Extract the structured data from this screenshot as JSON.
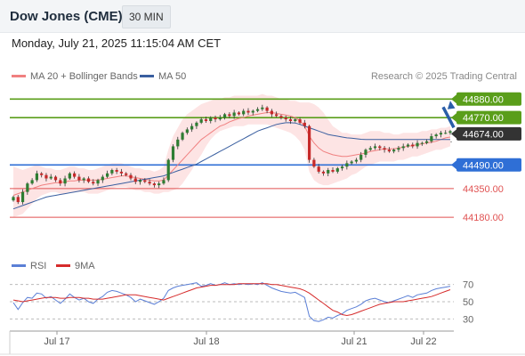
{
  "header": {
    "title": "Dow Jones (CME)",
    "timeframe": "30 MIN",
    "datetime": "Monday, July 21, 2025 11:15:04 AM CET"
  },
  "legend": {
    "ma20_label": "MA 20 + Bollinger Bands",
    "ma50_label": "MA 50",
    "credit": "Research © 2025 Trading Central"
  },
  "rsi_legend": {
    "rsi_label": "RSI",
    "ma_label": "9MA"
  },
  "colors": {
    "ma20": "#f08080",
    "bollinger_fill": "#fde4e4",
    "ma50": "#3a5fa0",
    "candle_up": "#2e7d32",
    "candle_down": "#c62828",
    "resistance": "#5a9e1a",
    "pivot": "#2f6fd6",
    "support": "#e05252",
    "arrow": "#2a5ea8",
    "current": "#333333",
    "rsi_line": "#5b7fd6",
    "rsi_ma": "#d62b2b"
  },
  "chart_data": [
    {
      "type": "candlestick",
      "x_labels": [
        "Jul 17",
        "Jul 18",
        "Jul 21",
        "Jul 22"
      ],
      "ylim": [
        43970,
        44950
      ],
      "levels": [
        {
          "label": "44880.00",
          "value": 44880,
          "kind": "resistance"
        },
        {
          "label": "44770.00",
          "value": 44770,
          "kind": "resistance"
        },
        {
          "label": "44490.00",
          "value": 44490,
          "kind": "pivot"
        },
        {
          "label": "44350.00",
          "value": 44350,
          "kind": "support"
        },
        {
          "label": "44180.00",
          "value": 44180,
          "kind": "support"
        }
      ],
      "current_price": {
        "label": "44674.00",
        "value": 44674
      },
      "closes": [
        44300,
        44270,
        44330,
        44380,
        44400,
        44440,
        44430,
        44410,
        44420,
        44400,
        44380,
        44410,
        44440,
        44420,
        44400,
        44410,
        44390,
        44380,
        44400,
        44420,
        44440,
        44460,
        44450,
        44440,
        44430,
        44410,
        44390,
        44400,
        44390,
        44380,
        44370,
        44380,
        44400,
        44520,
        44600,
        44640,
        44680,
        44700,
        44720,
        44740,
        44760,
        44750,
        44770,
        44760,
        44770,
        44790,
        44780,
        44800,
        44790,
        44810,
        44800,
        44810,
        44820,
        44830,
        44810,
        44790,
        44780,
        44770,
        44760,
        44750,
        44760,
        44740,
        44720,
        44520,
        44480,
        44450,
        44440,
        44460,
        44450,
        44470,
        44480,
        44500,
        44510,
        44520,
        44550,
        44580,
        44590,
        44600,
        44590,
        44580,
        44570,
        44580,
        44590,
        44600,
        44610,
        44600,
        44620,
        44620,
        44630,
        44660,
        44670,
        44680,
        44680,
        44690
      ],
      "band_upper": [
        44480,
        44470,
        44460,
        44470,
        44480,
        44490,
        44480,
        44470,
        44470,
        44460,
        44460,
        44470,
        44480,
        44480,
        44470,
        44470,
        44460,
        44460,
        44470,
        44480,
        44490,
        44500,
        44500,
        44500,
        44490,
        44480,
        44470,
        44470,
        44460,
        44460,
        44450,
        44460,
        44480,
        44580,
        44660,
        44710,
        44760,
        44790,
        44810,
        44830,
        44850,
        44860,
        44870,
        44880,
        44880,
        44890,
        44890,
        44900,
        44900,
        44900,
        44900,
        44900,
        44900,
        44910,
        44900,
        44900,
        44890,
        44880,
        44880,
        44870,
        44870,
        44860,
        44860,
        44860,
        44850,
        44830,
        44800,
        44760,
        44720,
        44700,
        44680,
        44680,
        44670,
        44670,
        44670,
        44680,
        44690,
        44690,
        44690,
        44680,
        44680,
        44670,
        44670,
        44680,
        44680,
        44680,
        44680,
        44690,
        44690,
        44700,
        44700,
        44710,
        44710,
        44720
      ],
      "band_lower": [
        44180,
        44190,
        44200,
        44230,
        44260,
        44290,
        44310,
        44320,
        44330,
        44330,
        44320,
        44320,
        44330,
        44330,
        44330,
        44330,
        44320,
        44320,
        44320,
        44330,
        44340,
        44350,
        44360,
        44360,
        44360,
        44350,
        44340,
        44340,
        44330,
        44330,
        44320,
        44320,
        44330,
        44330,
        44340,
        44350,
        44380,
        44420,
        44460,
        44510,
        44550,
        44600,
        44640,
        44670,
        44690,
        44700,
        44710,
        44720,
        44720,
        44720,
        44730,
        44730,
        44730,
        44730,
        44730,
        44720,
        44710,
        44700,
        44690,
        44680,
        44660,
        44630,
        44580,
        44450,
        44400,
        44380,
        44370,
        44370,
        44380,
        44390,
        44400,
        44410,
        44430,
        44440,
        44460,
        44480,
        44490,
        44500,
        44510,
        44510,
        44510,
        44510,
        44520,
        44520,
        44530,
        44540,
        44540,
        44550,
        44560,
        44570,
        44580,
        44580,
        44590,
        44600
      ],
      "ma20": [
        44310,
        44320,
        44330,
        44340,
        44350,
        44360,
        44370,
        44375,
        44380,
        44385,
        44385,
        44390,
        44395,
        44395,
        44400,
        44400,
        44400,
        44400,
        44400,
        44405,
        44410,
        44415,
        44420,
        44425,
        44425,
        44420,
        44415,
        44410,
        44405,
        44400,
        44395,
        44395,
        44400,
        44430,
        44460,
        44490,
        44520,
        44550,
        44580,
        44610,
        44640,
        44660,
        44680,
        44700,
        44720,
        44730,
        44745,
        44755,
        44765,
        44770,
        44780,
        44785,
        44790,
        44795,
        44800,
        44800,
        44795,
        44790,
        44785,
        44780,
        44770,
        44750,
        44720,
        44660,
        44620,
        44590,
        44570,
        44560,
        44550,
        44545,
        44540,
        44540,
        44545,
        44550,
        44555,
        44560,
        44570,
        44575,
        44580,
        44585,
        44585,
        44585,
        44590,
        44595,
        44600,
        44605,
        44610,
        44615,
        44620,
        44625,
        44630,
        44640,
        44650,
        44655
      ],
      "ma50": [
        44230,
        44240,
        44250,
        44260,
        44270,
        44280,
        44290,
        44300,
        44305,
        44310,
        44315,
        44320,
        44325,
        44330,
        44335,
        44340,
        44345,
        44350,
        44355,
        44360,
        44365,
        44370,
        44375,
        44380,
        44385,
        44390,
        44395,
        44400,
        44405,
        44410,
        44415,
        44420,
        44425,
        44435,
        44445,
        44455,
        44465,
        44475,
        44485,
        44495,
        44510,
        44525,
        44540,
        44555,
        44570,
        44585,
        44600,
        44615,
        44630,
        44645,
        44660,
        44675,
        44690,
        44700,
        44710,
        44720,
        44730,
        44735,
        44740,
        44740,
        44738,
        44730,
        44720,
        44710,
        44700,
        44690,
        44680,
        44670,
        44665,
        44660,
        44655,
        44650,
        44648,
        44645,
        44642,
        44640,
        44640,
        44640,
        44640,
        44640,
        44640,
        44640,
        44640,
        44640,
        44640,
        44640,
        44640,
        44640,
        44640,
        44640,
        44640,
        44640,
        44640,
        44640
      ]
    },
    {
      "type": "line",
      "title": "RSI",
      "y_ticks": [
        70,
        50,
        30
      ],
      "ylim": [
        20,
        80
      ],
      "rsi": [
        49,
        41,
        49,
        55,
        54,
        60,
        59,
        54,
        56,
        52,
        48,
        53,
        59,
        55,
        52,
        54,
        50,
        48,
        53,
        56,
        61,
        63,
        62,
        60,
        58,
        55,
        50,
        53,
        51,
        49,
        47,
        50,
        54,
        63,
        66,
        68,
        69,
        70,
        71,
        72,
        68,
        69,
        71,
        69,
        70,
        72,
        70,
        71,
        70,
        71,
        70,
        71,
        70,
        72,
        69,
        66,
        64,
        62,
        61,
        60,
        61,
        58,
        55,
        33,
        28,
        27,
        29,
        32,
        31,
        34,
        36,
        40,
        42,
        44,
        47,
        51,
        53,
        54,
        52,
        50,
        49,
        51,
        53,
        55,
        57,
        55,
        58,
        59,
        60,
        63,
        65,
        66,
        67,
        68
      ],
      "ma9": [
        52,
        51,
        50,
        51,
        52,
        53,
        54,
        55,
        55,
        55,
        54,
        54,
        55,
        55,
        55,
        54,
        54,
        53,
        53,
        53,
        54,
        55,
        56,
        57,
        58,
        58,
        58,
        57,
        56,
        55,
        54,
        53,
        52,
        54,
        56,
        58,
        60,
        62,
        64,
        66,
        67,
        68,
        69,
        69,
        70,
        70,
        70,
        70,
        71,
        71,
        71,
        71,
        71,
        71,
        71,
        70,
        70,
        69,
        68,
        67,
        66,
        65,
        63,
        60,
        56,
        52,
        48,
        44,
        40,
        38,
        35,
        34,
        35,
        37,
        39,
        41,
        43,
        45,
        47,
        48,
        49,
        50,
        50,
        50,
        51,
        52,
        53,
        54,
        55,
        56,
        58,
        60,
        62,
        64
      ]
    }
  ]
}
